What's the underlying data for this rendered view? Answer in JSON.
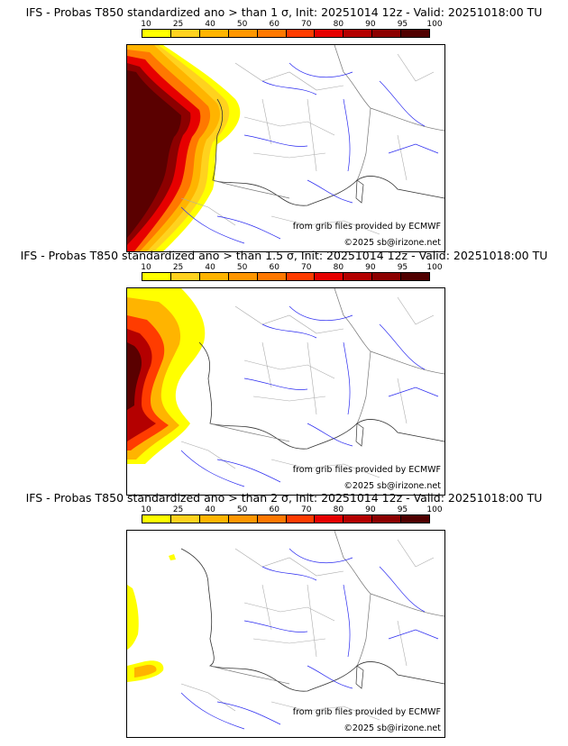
{
  "panels": [
    {
      "title": "IFS - Probas T850  standardized ano > than 1 σ, Init: 20251014 12z - Valid: 20251018:00 TU",
      "credit_source": "from grib files provided by ECMWF",
      "credit_copyright": "©2025 sb@irizone.net"
    },
    {
      "title": "IFS - Probas T850  standardized ano > than 1.5 σ, Init: 20251014 12z - Valid: 20251018:00 TU",
      "credit_source": "from grib files provided by ECMWF",
      "credit_copyright": "©2025 sb@irizone.net"
    },
    {
      "title": "IFS - Probas T850  standardized ano > than 2 σ, Init: 20251014 12z - Valid: 20251018:00 TU",
      "credit_source": "from grib files provided by ECMWF",
      "credit_copyright": "©2025 sb@irizone.net"
    }
  ],
  "legend": {
    "labels": [
      "10",
      "25",
      "40",
      "50",
      "60",
      "70",
      "80",
      "90",
      "95",
      "100"
    ],
    "colors": [
      "#ffff00",
      "#ffd21e",
      "#ffb400",
      "#ff9600",
      "#ff7800",
      "#ff3c00",
      "#e60000",
      "#b40000",
      "#8c0000",
      "#500000"
    ]
  }
}
